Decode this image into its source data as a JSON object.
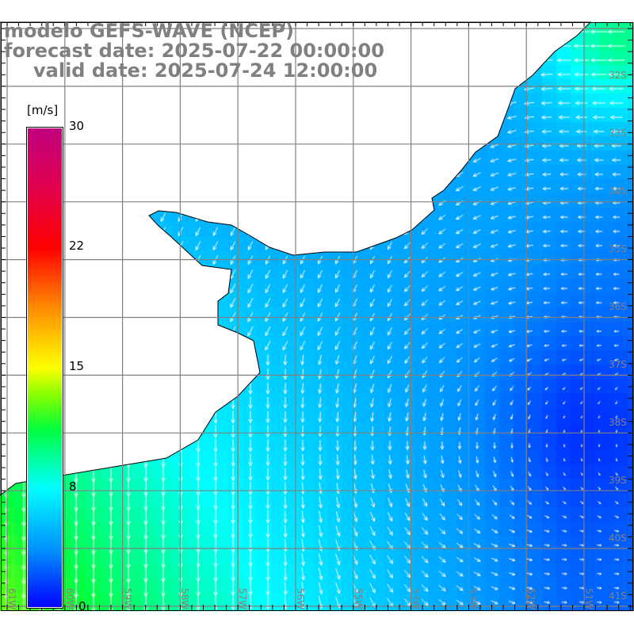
{
  "header": {
    "line1": "modelo GEFS-WAVE (NCEP)",
    "line2": "forecast date: 2025-07-22 00:00:00",
    "line3": "valid date: 2025-07-24 12:00:00"
  },
  "colorbar": {
    "units": "[m/s]",
    "ticks": [
      "30",
      "22",
      "15",
      "8",
      "0"
    ],
    "colors": [
      "#0000ff",
      "#00ffff",
      "#00ff00",
      "#ffff00",
      "#ff0000",
      "#c0007f"
    ]
  },
  "axes": {
    "lon_labels": [
      "61W",
      "60W",
      "59W",
      "58W",
      "57W",
      "56W",
      "55W",
      "54W",
      "53W",
      "52W",
      "51W"
    ],
    "lat_labels": [
      "32S",
      "33S",
      "34S",
      "35S",
      "36S",
      "37S",
      "38S",
      "39S",
      "40S",
      "41S"
    ],
    "grid_color": "#808080"
  },
  "colors": {
    "land": "#ffffff",
    "coast": "#000000",
    "arrow": "#ffffff"
  }
}
